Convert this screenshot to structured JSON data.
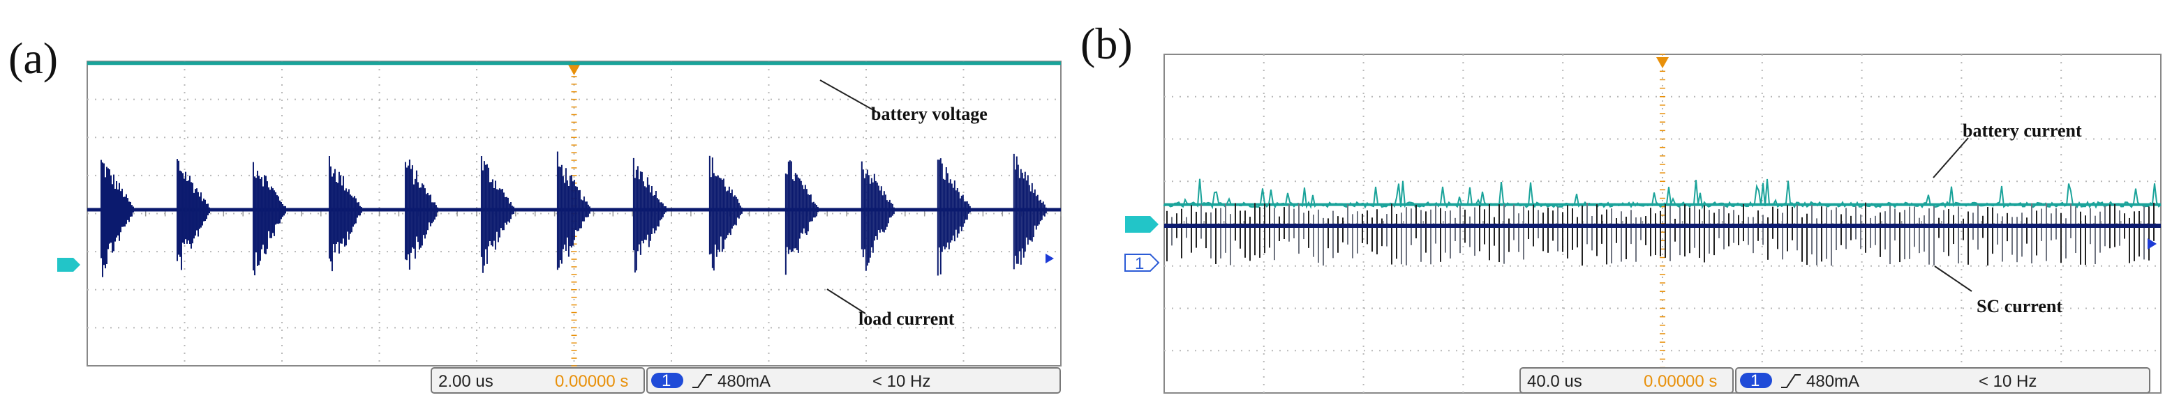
{
  "chart_data": [
    {
      "type": "line",
      "panel_label": "(a)",
      "x_divisions": 10,
      "y_divisions": 8,
      "grid": true,
      "series": [
        {
          "name": "battery voltage",
          "color": "#1aa39a",
          "kind": "flat",
          "level": 3.95
        },
        {
          "name": "load current",
          "color": "#0b1a6e",
          "kind": "burst",
          "level": 0.1,
          "bursts": 13,
          "amp_up": 1.55,
          "amp_down": 1.85
        }
      ],
      "annotations": [
        {
          "text": "battery voltage",
          "target": "battery voltage"
        },
        {
          "text": "load current",
          "target": "load current"
        }
      ],
      "status": {
        "timebase": "2.00 us",
        "trigger_pos": "0.00000 s",
        "channel": "1",
        "trigger_level": "480mA",
        "frequency": "< 10 Hz"
      }
    },
    {
      "type": "line",
      "panel_label": "(b)",
      "x_divisions": 10,
      "y_divisions": 8,
      "grid": true,
      "series": [
        {
          "name": "battery current",
          "color": "#1aa39a",
          "kind": "noisy",
          "level": 0.45,
          "noise": 0.12
        },
        {
          "name": "SC current",
          "color": "#0b1a6e",
          "kind": "dense",
          "level": -0.05,
          "amp_up": 0.55,
          "amp_down": 0.95
        }
      ],
      "annotations": [
        {
          "text": "battery current",
          "target": "battery current"
        },
        {
          "text": "SC current",
          "target": "SC current"
        }
      ],
      "status": {
        "timebase": "40.0 us",
        "trigger_pos": "0.00000 s",
        "channel": "1",
        "trigger_level": "480mA",
        "frequency": "< 10 Hz"
      }
    }
  ],
  "colors": {
    "teal": "#1aa39a",
    "navy": "#0b1a6e",
    "trigger": "#e8900a",
    "grid": "#b8b8b8",
    "frame": "#888888"
  }
}
